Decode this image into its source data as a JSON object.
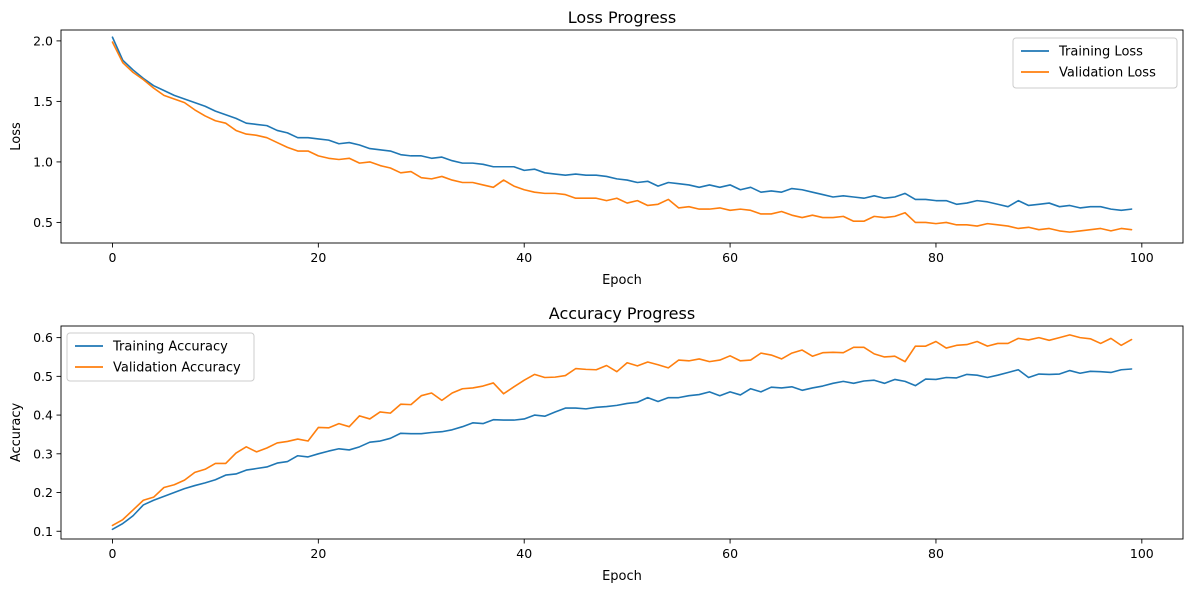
{
  "chart_data": [
    {
      "type": "line",
      "title": "Loss Progress",
      "xlabel": "Epoch",
      "ylabel": "Loss",
      "xlim": [
        -5,
        104
      ],
      "ylim": [
        0.33,
        2.09
      ],
      "xticks": [
        0,
        20,
        40,
        60,
        80,
        100
      ],
      "yticks": [
        0.5,
        1.0,
        1.5,
        2.0
      ],
      "xtick_labels": [
        "0",
        "20",
        "40",
        "60",
        "80",
        "100"
      ],
      "ytick_labels": [
        "0.5",
        "1.0",
        "1.5",
        "2.0"
      ],
      "grid": false,
      "legend": "top-right",
      "series": [
        {
          "name": "Training Loss",
          "color": "#1f77b4",
          "values": [
            2.03,
            1.84,
            1.76,
            1.69,
            1.63,
            1.59,
            1.55,
            1.52,
            1.49,
            1.46,
            1.42,
            1.39,
            1.36,
            1.32,
            1.31,
            1.3,
            1.26,
            1.24,
            1.2,
            1.2,
            1.19,
            1.18,
            1.15,
            1.16,
            1.14,
            1.11,
            1.1,
            1.09,
            1.06,
            1.05,
            1.05,
            1.03,
            1.04,
            1.01,
            0.99,
            0.99,
            0.98,
            0.96,
            0.96,
            0.96,
            0.93,
            0.94,
            0.91,
            0.9,
            0.89,
            0.9,
            0.89,
            0.89,
            0.88,
            0.86,
            0.85,
            0.83,
            0.84,
            0.8,
            0.83,
            0.82,
            0.81,
            0.79,
            0.81,
            0.79,
            0.81,
            0.77,
            0.79,
            0.75,
            0.76,
            0.75,
            0.78,
            0.77,
            0.75,
            0.73,
            0.71,
            0.72,
            0.71,
            0.7,
            0.72,
            0.7,
            0.71,
            0.74,
            0.69,
            0.69,
            0.68,
            0.68,
            0.65,
            0.66,
            0.68,
            0.67,
            0.65,
            0.63,
            0.68,
            0.64,
            0.65,
            0.66,
            0.63,
            0.64,
            0.62,
            0.63,
            0.63,
            0.61,
            0.6,
            0.61
          ]
        },
        {
          "name": "Validation Loss",
          "color": "#ff7f0e",
          "values": [
            1.99,
            1.82,
            1.74,
            1.68,
            1.61,
            1.55,
            1.52,
            1.49,
            1.43,
            1.38,
            1.34,
            1.32,
            1.26,
            1.23,
            1.22,
            1.2,
            1.16,
            1.12,
            1.09,
            1.09,
            1.05,
            1.03,
            1.02,
            1.03,
            0.99,
            1.0,
            0.97,
            0.95,
            0.91,
            0.92,
            0.87,
            0.86,
            0.88,
            0.85,
            0.83,
            0.83,
            0.81,
            0.79,
            0.85,
            0.8,
            0.77,
            0.75,
            0.74,
            0.74,
            0.73,
            0.7,
            0.7,
            0.7,
            0.68,
            0.7,
            0.66,
            0.68,
            0.64,
            0.65,
            0.69,
            0.62,
            0.63,
            0.61,
            0.61,
            0.62,
            0.6,
            0.61,
            0.6,
            0.57,
            0.57,
            0.59,
            0.56,
            0.54,
            0.56,
            0.54,
            0.54,
            0.55,
            0.51,
            0.51,
            0.55,
            0.54,
            0.55,
            0.58,
            0.5,
            0.5,
            0.49,
            0.5,
            0.48,
            0.48,
            0.47,
            0.49,
            0.48,
            0.47,
            0.45,
            0.46,
            0.44,
            0.45,
            0.43,
            0.42,
            0.43,
            0.44,
            0.45,
            0.43,
            0.45,
            0.44
          ]
        }
      ]
    },
    {
      "type": "line",
      "title": "Accuracy Progress",
      "xlabel": "Epoch",
      "ylabel": "Accuracy",
      "xlim": [
        -5,
        104
      ],
      "ylim": [
        0.08,
        0.63
      ],
      "xticks": [
        0,
        20,
        40,
        60,
        80,
        100
      ],
      "yticks": [
        0.1,
        0.2,
        0.3,
        0.4,
        0.5,
        0.6
      ],
      "xtick_labels": [
        "0",
        "20",
        "40",
        "60",
        "80",
        "100"
      ],
      "ytick_labels": [
        "0.1",
        "0.2",
        "0.3",
        "0.4",
        "0.5",
        "0.6"
      ],
      "grid": false,
      "legend": "top-left",
      "series": [
        {
          "name": "Training Accuracy",
          "color": "#1f77b4",
          "values": [
            0.105,
            0.12,
            0.14,
            0.168,
            0.18,
            0.19,
            0.2,
            0.21,
            0.218,
            0.225,
            0.233,
            0.245,
            0.248,
            0.258,
            0.262,
            0.266,
            0.276,
            0.28,
            0.295,
            0.292,
            0.3,
            0.307,
            0.313,
            0.31,
            0.318,
            0.33,
            0.333,
            0.34,
            0.353,
            0.352,
            0.352,
            0.355,
            0.357,
            0.362,
            0.37,
            0.38,
            0.378,
            0.388,
            0.387,
            0.387,
            0.39,
            0.4,
            0.397,
            0.408,
            0.418,
            0.418,
            0.416,
            0.42,
            0.422,
            0.425,
            0.43,
            0.433,
            0.445,
            0.435,
            0.445,
            0.445,
            0.45,
            0.453,
            0.46,
            0.45,
            0.46,
            0.452,
            0.468,
            0.46,
            0.472,
            0.47,
            0.473,
            0.464,
            0.47,
            0.475,
            0.482,
            0.487,
            0.482,
            0.488,
            0.49,
            0.482,
            0.492,
            0.487,
            0.476,
            0.493,
            0.492,
            0.497,
            0.496,
            0.505,
            0.503,
            0.497,
            0.503,
            0.51,
            0.517,
            0.497,
            0.506,
            0.505,
            0.506,
            0.515,
            0.508,
            0.513,
            0.512,
            0.51,
            0.517,
            0.519
          ]
        },
        {
          "name": "Validation Accuracy",
          "color": "#ff7f0e",
          "values": [
            0.115,
            0.13,
            0.155,
            0.18,
            0.188,
            0.213,
            0.22,
            0.232,
            0.252,
            0.26,
            0.275,
            0.275,
            0.302,
            0.318,
            0.305,
            0.315,
            0.328,
            0.332,
            0.338,
            0.333,
            0.368,
            0.367,
            0.378,
            0.37,
            0.398,
            0.39,
            0.408,
            0.405,
            0.428,
            0.427,
            0.45,
            0.457,
            0.438,
            0.457,
            0.468,
            0.47,
            0.475,
            0.483,
            0.455,
            0.473,
            0.49,
            0.505,
            0.497,
            0.498,
            0.502,
            0.52,
            0.518,
            0.517,
            0.528,
            0.512,
            0.535,
            0.527,
            0.537,
            0.53,
            0.522,
            0.542,
            0.54,
            0.545,
            0.538,
            0.542,
            0.553,
            0.54,
            0.542,
            0.56,
            0.555,
            0.545,
            0.56,
            0.568,
            0.552,
            0.561,
            0.562,
            0.561,
            0.575,
            0.575,
            0.558,
            0.55,
            0.552,
            0.538,
            0.578,
            0.578,
            0.59,
            0.573,
            0.58,
            0.582,
            0.59,
            0.578,
            0.585,
            0.585,
            0.598,
            0.594,
            0.6,
            0.593,
            0.6,
            0.607,
            0.6,
            0.597,
            0.585,
            0.598,
            0.58,
            0.595
          ]
        }
      ]
    }
  ]
}
